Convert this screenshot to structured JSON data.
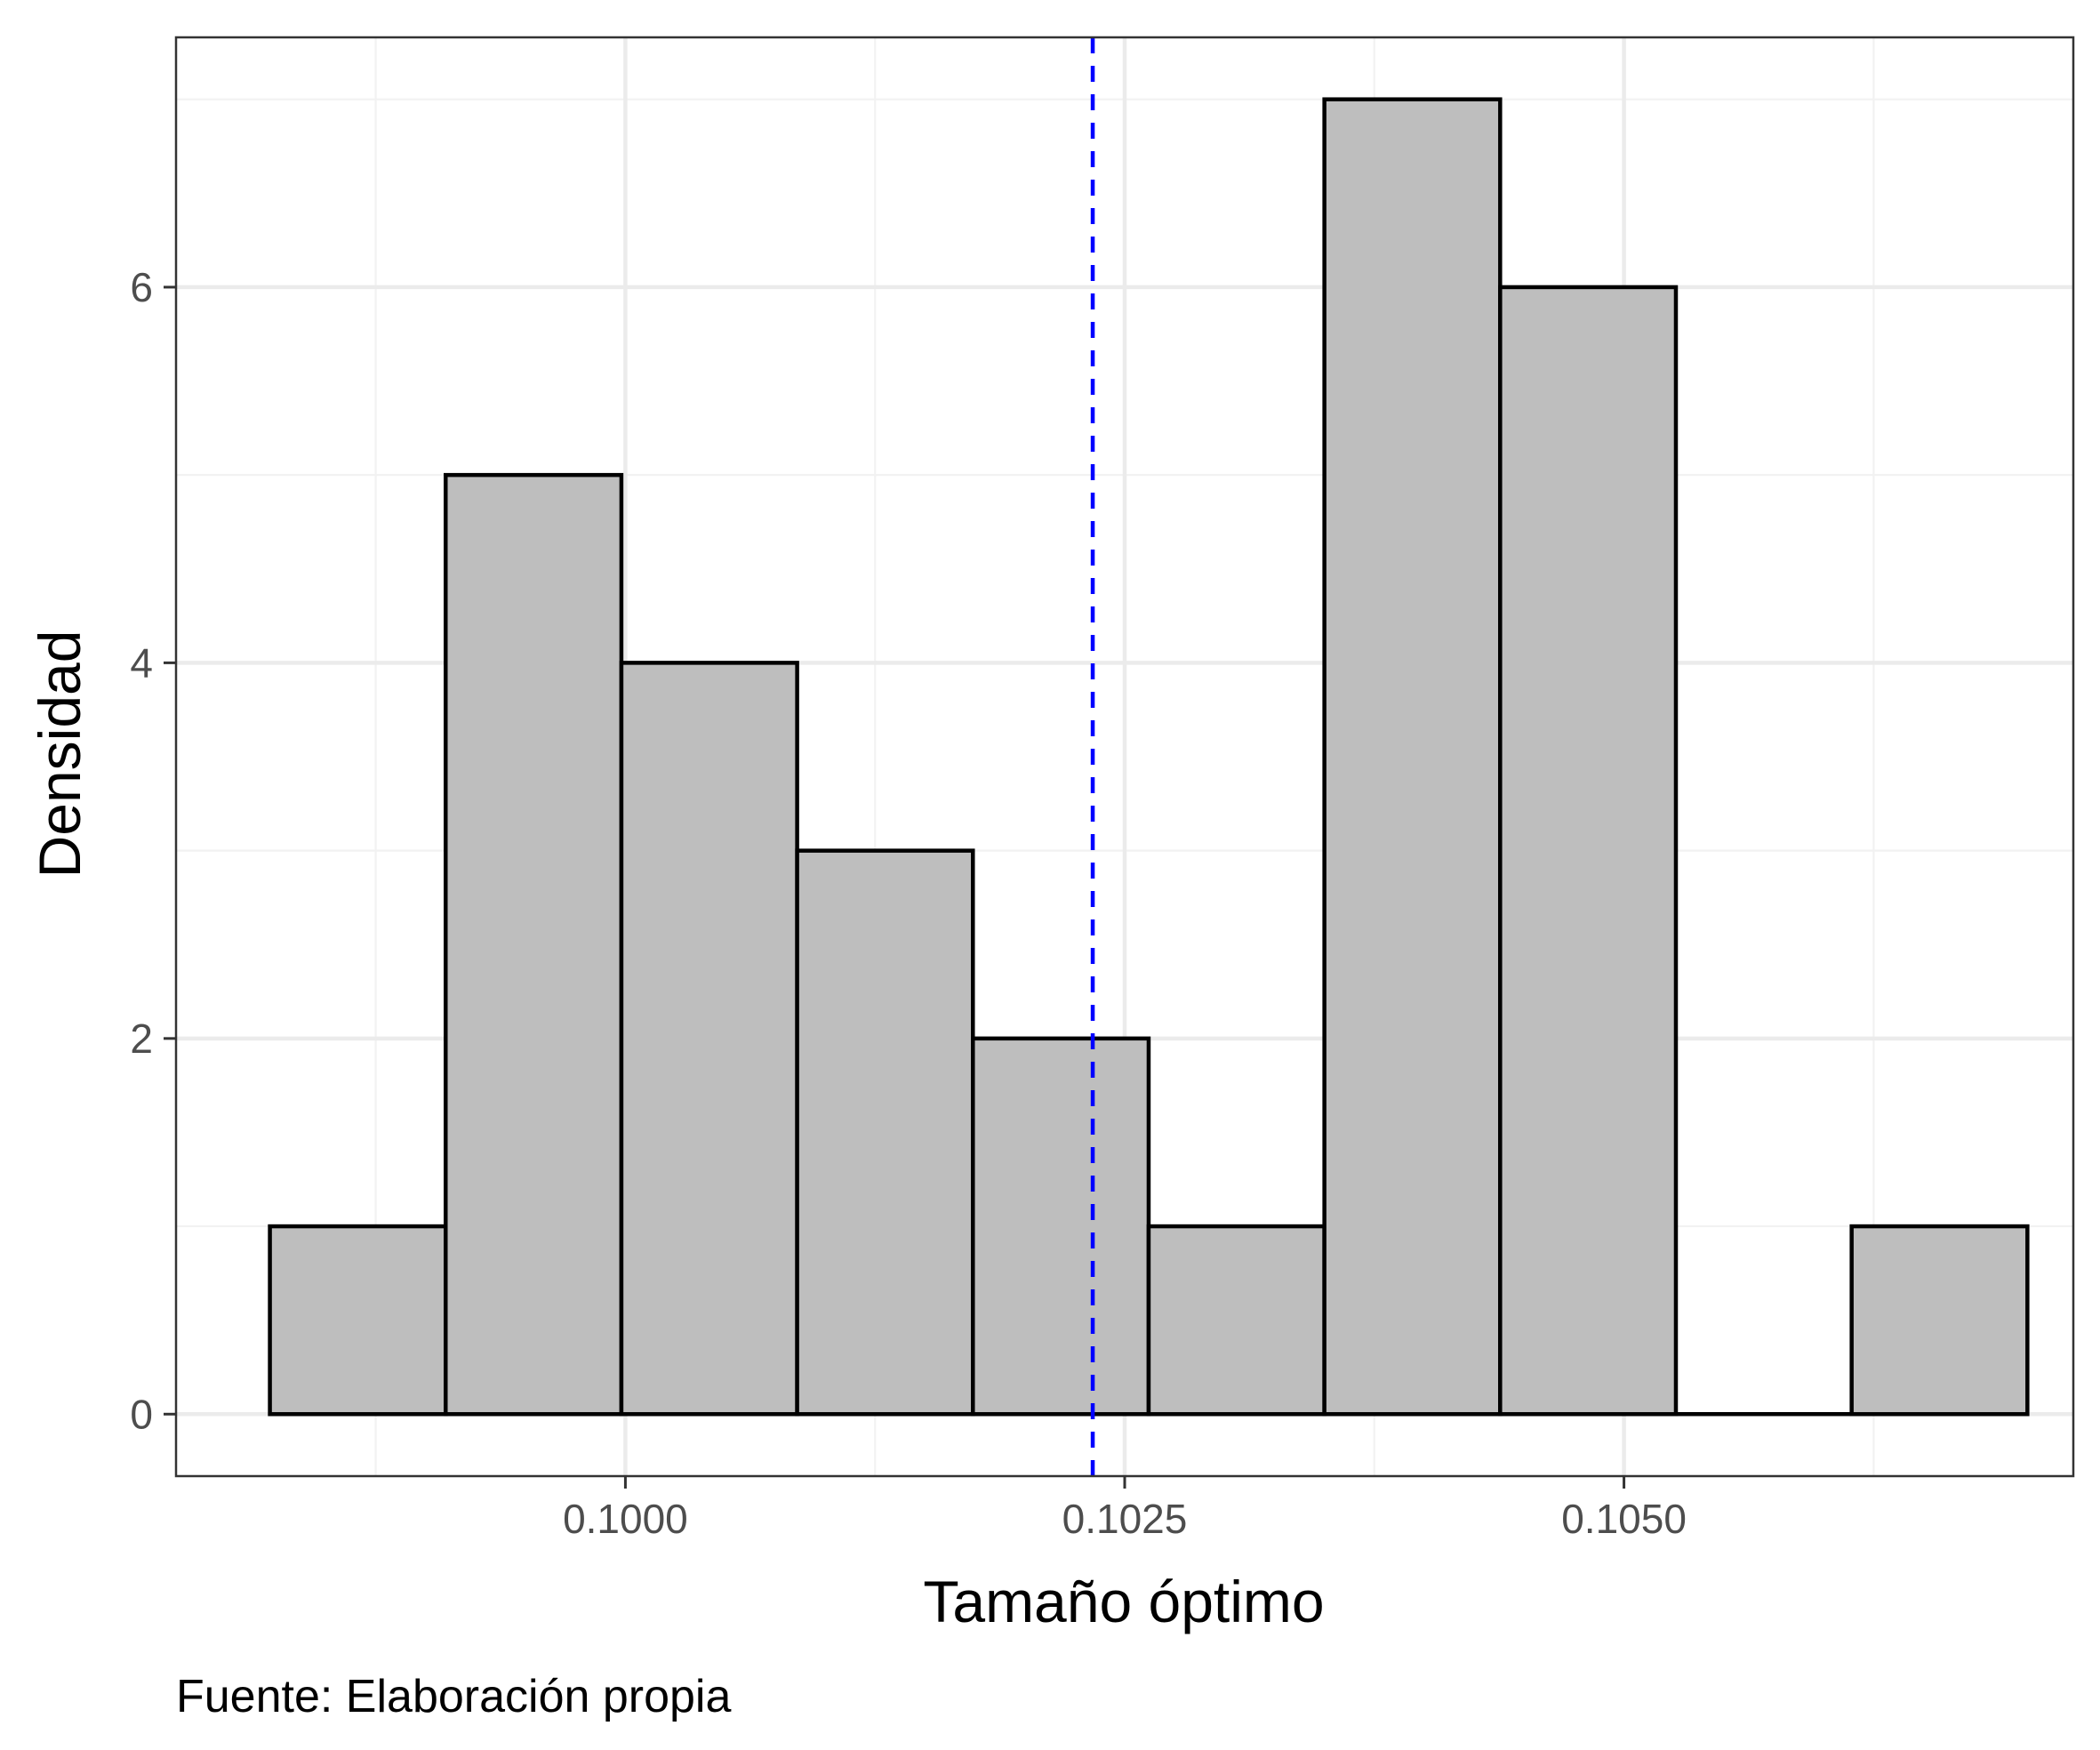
{
  "chart_data": {
    "type": "histogram",
    "xlabel": "Tamaño óptimo",
    "ylabel": "Densidad",
    "caption": "Fuente: Elaboración propia",
    "xlim": [
      0.09775,
      0.10725
    ],
    "ylim": [
      -0.33,
      7.33
    ],
    "x_ticks": [
      {
        "value": 0.1,
        "label": "0.1000"
      },
      {
        "value": 0.1025,
        "label": "0.1025"
      },
      {
        "value": 0.105,
        "label": "0.1050"
      }
    ],
    "y_ticks": [
      {
        "value": 0,
        "label": "0"
      },
      {
        "value": 2,
        "label": "2"
      },
      {
        "value": 4,
        "label": "4"
      },
      {
        "value": 6,
        "label": "6"
      }
    ],
    "x_minor": [
      0.09875,
      0.10125,
      0.10375,
      0.10625
    ],
    "y_minor": [
      1,
      3,
      5,
      7
    ],
    "bins": [
      {
        "x0": 0.09822,
        "x1": 0.0991,
        "density": 1
      },
      {
        "x0": 0.0991,
        "x1": 0.09998,
        "density": 5
      },
      {
        "x0": 0.09998,
        "x1": 0.10086,
        "density": 4
      },
      {
        "x0": 0.10086,
        "x1": 0.10174,
        "density": 3
      },
      {
        "x0": 0.10174,
        "x1": 0.10262,
        "density": 2
      },
      {
        "x0": 0.10262,
        "x1": 0.1035,
        "density": 1
      },
      {
        "x0": 0.1035,
        "x1": 0.10438,
        "density": 7
      },
      {
        "x0": 0.10438,
        "x1": 0.10526,
        "density": 6
      },
      {
        "x0": 0.10526,
        "x1": 0.10614,
        "density": 0
      },
      {
        "x0": 0.10614,
        "x1": 0.10702,
        "density": 1
      }
    ],
    "reference_line": {
      "x": 0.10234,
      "style": "dashed",
      "color": "#0000ff"
    },
    "colors": {
      "bar_fill": "#bebebe",
      "bar_stroke": "#000000",
      "grid_major": "#ebebeb",
      "grid_minor": "#f2f2f2",
      "panel_border": "#333333"
    },
    "grid": true,
    "legend": "none"
  }
}
